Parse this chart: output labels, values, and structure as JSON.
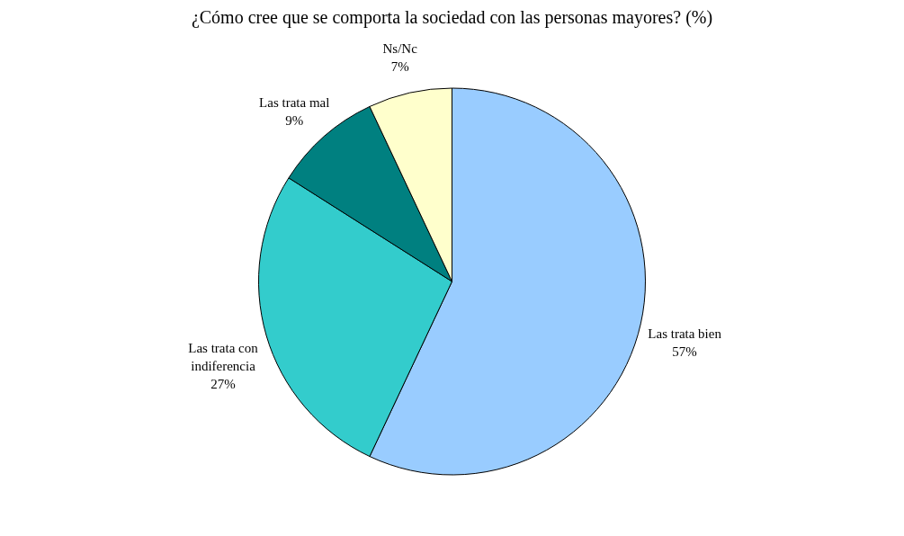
{
  "chart_data": {
    "type": "pie",
    "title": "¿Cómo cree que se comporta la sociedad con las personas mayores? (%)",
    "categories": [
      "Las trata bien",
      "Las trata con indiferencia",
      "Las trata mal",
      "Ns/Nc"
    ],
    "values": [
      57,
      27,
      9,
      7
    ],
    "colors": [
      "#99ccff",
      "#33cccc",
      "#008080",
      "#ffffcc"
    ],
    "value_labels": [
      "57%",
      "27%",
      "9%",
      "7%"
    ]
  }
}
